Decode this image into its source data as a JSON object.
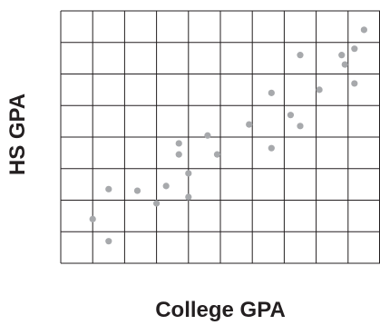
{
  "chart_data": {
    "type": "scatter",
    "title": "",
    "xlabel": "College GPA",
    "ylabel": "HS GPA",
    "xlim": [
      0,
      10
    ],
    "ylim": [
      0,
      8
    ],
    "grid": true,
    "colors": {
      "grid": "#231f20",
      "point": "#a7a9ac",
      "text": "#231f20"
    },
    "series": [
      {
        "points": [
          {
            "x": 1.0,
            "y": 1.4
          },
          {
            "x": 1.5,
            "y": 0.7
          },
          {
            "x": 1.5,
            "y": 2.35
          },
          {
            "x": 2.4,
            "y": 2.3
          },
          {
            "x": 3.0,
            "y": 1.9
          },
          {
            "x": 3.3,
            "y": 2.45
          },
          {
            "x": 3.7,
            "y": 3.8
          },
          {
            "x": 3.7,
            "y": 3.45
          },
          {
            "x": 4.0,
            "y": 2.1
          },
          {
            "x": 4.0,
            "y": 2.85
          },
          {
            "x": 4.6,
            "y": 4.05
          },
          {
            "x": 4.9,
            "y": 3.45
          },
          {
            "x": 5.9,
            "y": 4.4
          },
          {
            "x": 6.6,
            "y": 5.4
          },
          {
            "x": 6.6,
            "y": 3.65
          },
          {
            "x": 7.2,
            "y": 4.7
          },
          {
            "x": 7.5,
            "y": 4.35
          },
          {
            "x": 7.5,
            "y": 6.6
          },
          {
            "x": 8.1,
            "y": 5.5
          },
          {
            "x": 8.8,
            "y": 6.6
          },
          {
            "x": 8.9,
            "y": 6.3
          },
          {
            "x": 9.2,
            "y": 5.7
          },
          {
            "x": 9.2,
            "y": 6.8
          },
          {
            "x": 9.5,
            "y": 7.4
          }
        ]
      }
    ]
  }
}
